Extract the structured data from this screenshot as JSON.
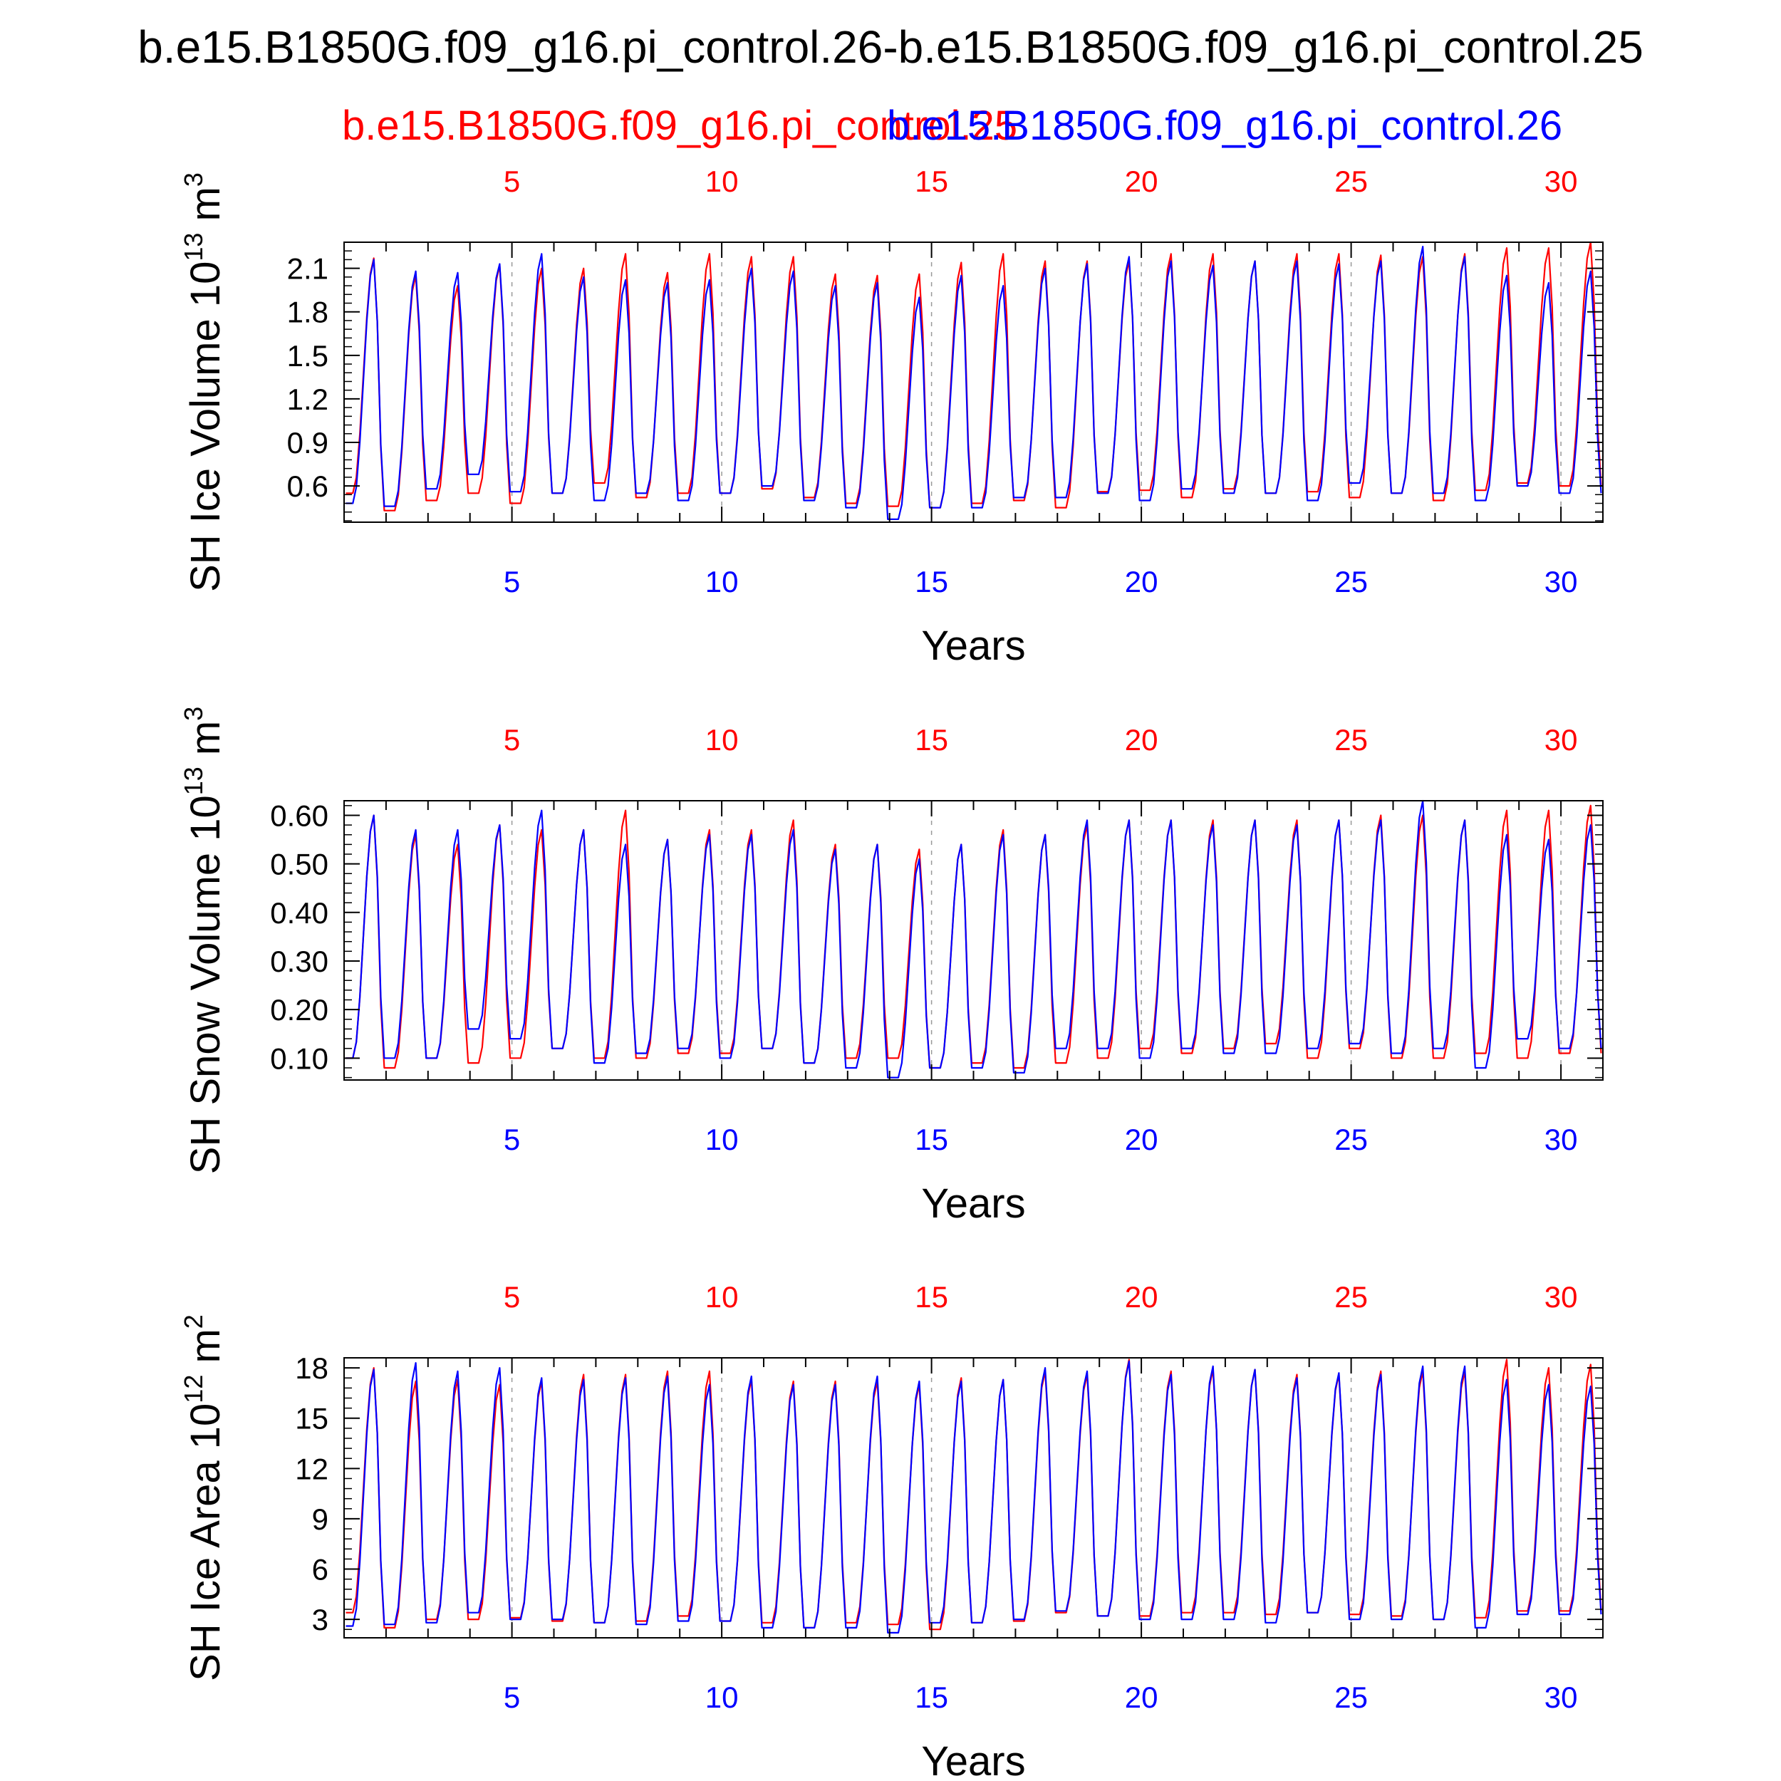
{
  "title": "b.e15.B1850G.f09_g16.pi_control.26-b.e15.B1850G.f09_g16.pi_control.25",
  "legend": {
    "red_label": "b.e15.B1850G.f09_g16.pi_control.25",
    "blue_label": "b.e15.B1850G.f09_g16.pi_control.26",
    "red_color": "#ff0000",
    "blue_color": "#0000ff"
  },
  "x_tick_labels": [
    "5",
    "10",
    "15",
    "20",
    "25",
    "30"
  ],
  "chart_data": [
    {
      "type": "line",
      "ylabel": "SH Ice Volume 10",
      "ylabel_exp": "13",
      "ylabel_unit": " m",
      "ylabel_unit_exp": "3",
      "xlabel": "Years",
      "xlim": [
        1,
        31
      ],
      "ylim": [
        0.35,
        2.28
      ],
      "yticks": [
        0.6,
        0.9,
        1.2,
        1.5,
        1.8,
        2.1
      ],
      "ytick_labels": [
        "0.6",
        "0.9",
        "1.2",
        "1.5",
        "1.8",
        "2.1"
      ],
      "series": [
        {
          "name": "b.e15.B1850G.f09_g16.pi_control.25",
          "color": "#ff0000",
          "max": [
            2.17,
            2.05,
            1.98,
            2.12,
            2.1,
            2.1,
            2.2,
            2.07,
            2.2,
            2.18,
            2.18,
            2.06,
            2.05,
            2.06,
            2.14,
            2.2,
            2.15,
            2.15,
            2.15,
            2.2,
            2.2,
            2.15,
            2.2,
            2.2,
            2.19,
            2.18,
            2.2,
            2.24,
            2.24,
            2.28
          ],
          "min": [
            0.55,
            0.43,
            0.5,
            0.55,
            0.48,
            0.55,
            0.62,
            0.52,
            0.55,
            0.55,
            0.58,
            0.52,
            0.48,
            0.46,
            0.45,
            0.48,
            0.5,
            0.45,
            0.56,
            0.57,
            0.52,
            0.58,
            0.55,
            0.56,
            0.52,
            0.55,
            0.5,
            0.57,
            0.62,
            0.6
          ]
        },
        {
          "name": "b.e15.B1850G.f09_g16.pi_control.26",
          "color": "#0000ff",
          "max": [
            2.16,
            2.08,
            2.07,
            2.13,
            2.2,
            2.04,
            2.02,
            2.0,
            2.02,
            2.1,
            2.08,
            1.98,
            2.0,
            1.9,
            2.05,
            1.98,
            2.1,
            2.13,
            2.18,
            2.15,
            2.12,
            2.15,
            2.15,
            2.13,
            2.15,
            2.25,
            2.18,
            2.05,
            2.0,
            2.08
          ],
          "min": [
            0.48,
            0.46,
            0.58,
            0.68,
            0.56,
            0.55,
            0.5,
            0.55,
            0.5,
            0.55,
            0.6,
            0.5,
            0.45,
            0.37,
            0.45,
            0.45,
            0.52,
            0.52,
            0.55,
            0.5,
            0.58,
            0.55,
            0.55,
            0.5,
            0.62,
            0.55,
            0.55,
            0.5,
            0.6,
            0.55
          ]
        }
      ]
    },
    {
      "type": "line",
      "ylabel": "SH Snow Volume 10",
      "ylabel_exp": "13",
      "ylabel_unit": " m",
      "ylabel_unit_exp": "3",
      "xlabel": "Years",
      "xlim": [
        1,
        31
      ],
      "ylim": [
        0.055,
        0.63
      ],
      "yticks": [
        0.1,
        0.2,
        0.3,
        0.4,
        0.5,
        0.6
      ],
      "ytick_labels": [
        "0.10",
        "0.20",
        "0.30",
        "0.40",
        "0.50",
        "0.60"
      ],
      "series": [
        {
          "name": "b.e15.B1850G.f09_g16.pi_control.25",
          "color": "#ff0000",
          "max": [
            0.6,
            0.56,
            0.54,
            0.58,
            0.57,
            0.57,
            0.61,
            0.55,
            0.57,
            0.57,
            0.59,
            0.54,
            0.54,
            0.53,
            0.54,
            0.57,
            0.56,
            0.58,
            0.59,
            0.59,
            0.59,
            0.59,
            0.59,
            0.59,
            0.6,
            0.6,
            0.59,
            0.61,
            0.61,
            0.62
          ],
          "min": [
            0.1,
            0.08,
            0.1,
            0.09,
            0.1,
            0.12,
            0.1,
            0.1,
            0.11,
            0.11,
            0.12,
            0.09,
            0.1,
            0.1,
            0.08,
            0.09,
            0.08,
            0.09,
            0.1,
            0.12,
            0.11,
            0.12,
            0.13,
            0.1,
            0.12,
            0.1,
            0.1,
            0.11,
            0.1,
            0.11
          ]
        },
        {
          "name": "b.e15.B1850G.f09_g16.pi_control.26",
          "color": "#0000ff",
          "max": [
            0.6,
            0.57,
            0.57,
            0.58,
            0.61,
            0.57,
            0.54,
            0.55,
            0.56,
            0.56,
            0.57,
            0.53,
            0.54,
            0.51,
            0.54,
            0.56,
            0.56,
            0.59,
            0.59,
            0.59,
            0.58,
            0.59,
            0.58,
            0.59,
            0.59,
            0.63,
            0.59,
            0.56,
            0.55,
            0.58
          ],
          "min": [
            0.1,
            0.1,
            0.1,
            0.16,
            0.14,
            0.12,
            0.09,
            0.11,
            0.12,
            0.1,
            0.12,
            0.09,
            0.08,
            0.06,
            0.08,
            0.08,
            0.07,
            0.12,
            0.12,
            0.1,
            0.12,
            0.11,
            0.11,
            0.12,
            0.13,
            0.11,
            0.12,
            0.08,
            0.14,
            0.12
          ]
        }
      ]
    },
    {
      "type": "line",
      "ylabel": "SH Ice Area 10",
      "ylabel_exp": "12",
      "ylabel_unit": " m",
      "ylabel_unit_exp": "2",
      "xlabel": "Years",
      "xlim": [
        1,
        31
      ],
      "ylim": [
        1.9,
        18.6
      ],
      "yticks": [
        3,
        6,
        9,
        12,
        15,
        18
      ],
      "ytick_labels": [
        "3",
        "6",
        "9",
        "12",
        "15",
        "18"
      ],
      "series": [
        {
          "name": "b.e15.B1850G.f09_g16.pi_control.25",
          "color": "#ff0000",
          "max": [
            18.0,
            17.2,
            17.3,
            17.0,
            17.2,
            17.6,
            17.6,
            17.8,
            17.8,
            17.3,
            17.2,
            17.2,
            17.2,
            17.0,
            17.4,
            17.3,
            17.8,
            17.6,
            18.5,
            17.8,
            17.9,
            17.9,
            17.6,
            17.6,
            17.8,
            17.8,
            17.8,
            18.5,
            18.0,
            18.2
          ],
          "min": [
            3.4,
            2.5,
            3.0,
            3.0,
            3.1,
            2.9,
            2.8,
            2.9,
            3.2,
            2.9,
            2.8,
            2.5,
            2.8,
            2.7,
            2.4,
            2.8,
            2.9,
            3.4,
            3.2,
            3.2,
            3.4,
            3.4,
            3.3,
            3.4,
            3.3,
            3.2,
            3.0,
            3.1,
            3.5,
            3.5
          ]
        },
        {
          "name": "b.e15.B1850G.f09_g16.pi_control.26",
          "color": "#0000ff",
          "max": [
            17.9,
            18.3,
            17.8,
            18.0,
            17.4,
            17.3,
            17.4,
            17.5,
            17.0,
            17.5,
            17.0,
            17.0,
            17.5,
            17.2,
            17.2,
            17.3,
            18.0,
            17.8,
            18.4,
            17.6,
            18.1,
            17.9,
            17.4,
            17.7,
            17.6,
            18.1,
            18.1,
            17.3,
            17.0,
            16.9
          ],
          "min": [
            2.6,
            2.7,
            2.8,
            3.4,
            3.0,
            3.0,
            2.8,
            2.7,
            2.9,
            2.9,
            2.5,
            2.5,
            2.5,
            2.2,
            2.8,
            2.8,
            3.0,
            3.5,
            3.2,
            3.0,
            3.0,
            3.0,
            2.8,
            3.4,
            3.0,
            3.0,
            3.0,
            2.5,
            3.3,
            3.3
          ]
        }
      ]
    }
  ]
}
